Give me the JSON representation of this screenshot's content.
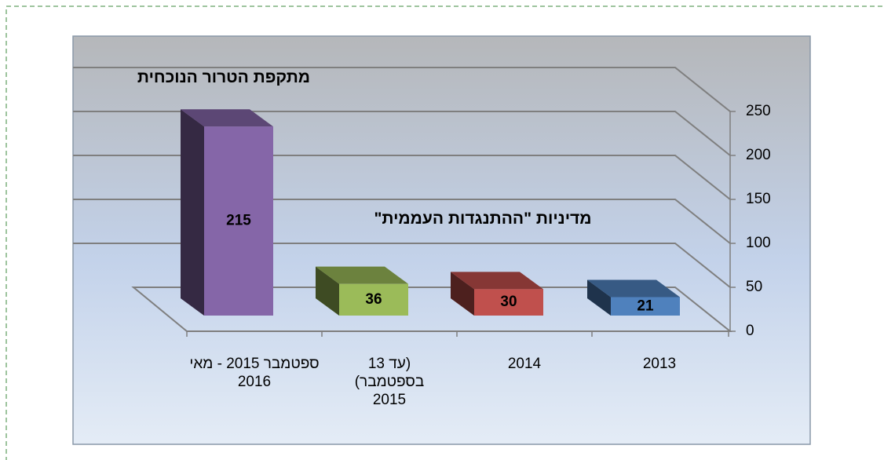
{
  "chart_data": {
    "type": "bar",
    "categories": [
      "ספטמבר 2015 - מאי 2016",
      "(עד 13 בספטמבר) 2015",
      "2014",
      "2013"
    ],
    "values": [
      215,
      36,
      30,
      21
    ],
    "colors": [
      "#8566a8",
      "#9bbb59",
      "#c0504d",
      "#4f81bd"
    ],
    "ylim": [
      0,
      250
    ],
    "yticks": [
      0,
      50,
      100,
      150,
      200,
      250
    ],
    "grid": true,
    "annotations": [
      "מתקפת הטרור הנוכחית",
      "מדיניות \"ההתנגדות העממית\""
    ]
  }
}
